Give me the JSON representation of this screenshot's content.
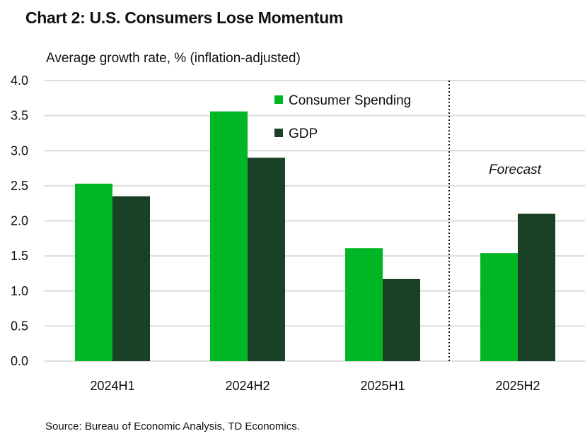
{
  "chart_data": {
    "type": "bar",
    "title": "Chart 2: U.S. Consumers Lose Momentum",
    "ylabel": "Average growth rate, % (inflation-adjusted)",
    "xlabel": "",
    "categories": [
      "2024H1",
      "2024H2",
      "2025H1",
      "2025H2"
    ],
    "series": [
      {
        "name": "Consumer Spending",
        "color": "#00B624",
        "values": [
          2.53,
          3.56,
          1.61,
          1.54
        ]
      },
      {
        "name": "GDP",
        "color": "#1A4025",
        "values": [
          2.35,
          2.9,
          1.17,
          2.1
        ]
      }
    ],
    "ylim": [
      0,
      4.0
    ],
    "yticks": [
      "0.0",
      "0.5",
      "1.0",
      "1.5",
      "2.0",
      "2.5",
      "3.0",
      "3.5",
      "4.0"
    ],
    "grid": true,
    "legend_position": "top-center",
    "annotations": [
      {
        "text": "Forecast",
        "applies_to": "2025H2"
      }
    ],
    "forecast_divider_between": [
      "2025H1",
      "2025H2"
    ],
    "source": "Source: Bureau of Economic Analysis, TD Economics."
  }
}
